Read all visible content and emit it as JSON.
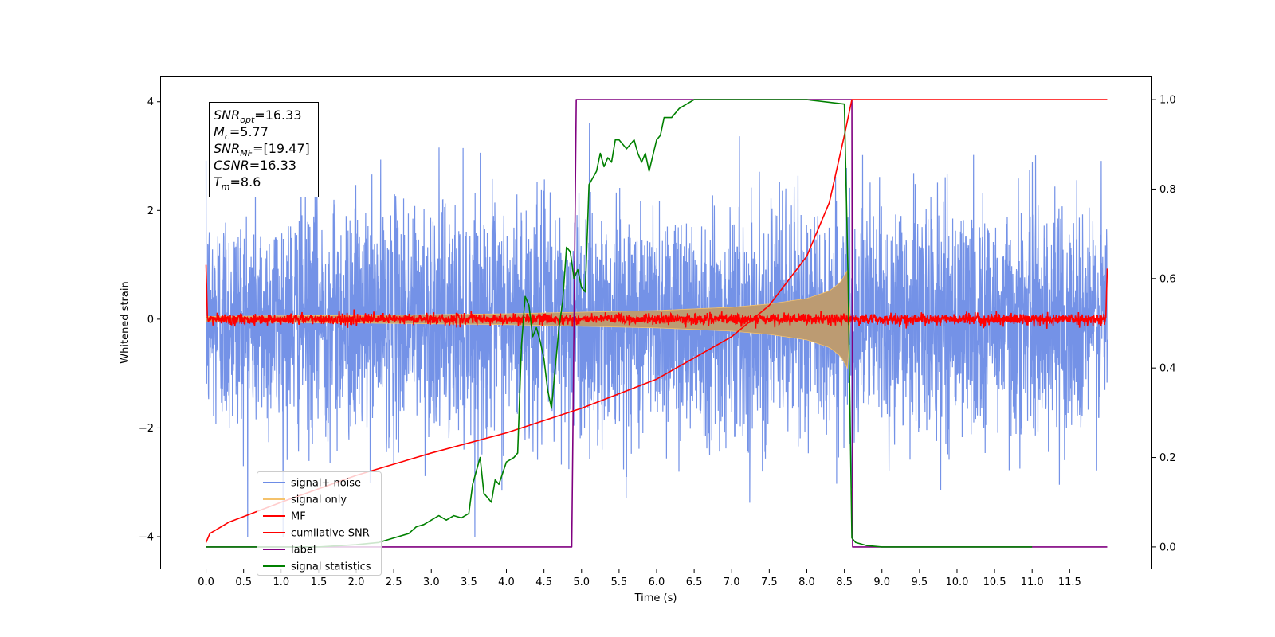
{
  "chart_data": {
    "type": "line",
    "title": "",
    "xlabel": "Time (s)",
    "ylabel": "Whitened strain",
    "xlim": [
      -0.6,
      12.6
    ],
    "ylim": [
      -4.6,
      4.45
    ],
    "ylim_right": [
      -0.05,
      1.05
    ],
    "x_ticks": [
      0.0,
      0.5,
      1.0,
      1.5,
      2.0,
      2.5,
      3.0,
      3.5,
      4.0,
      4.5,
      5.0,
      5.5,
      6.0,
      6.5,
      7.0,
      7.5,
      8.0,
      8.5,
      9.0,
      9.5,
      10.0,
      10.5,
      11.0,
      11.5
    ],
    "x_tick_labels": [
      "0.0",
      "0.5",
      "1.0",
      "1.5",
      "2.0",
      "2.5",
      "3.0",
      "3.5",
      "4.0",
      "4.5",
      "5.0",
      "5.5",
      "6.0",
      "6.5",
      "7.0",
      "7.5",
      "8.0",
      "8.5",
      "9.0",
      "9.5",
      "10.0",
      "10.5",
      "11.0",
      "11.5"
    ],
    "y_ticks": [
      -4,
      -2,
      0,
      2,
      4
    ],
    "y_tick_labels": [
      "−4",
      "−2",
      "0",
      "2",
      "4"
    ],
    "y_right_ticks": [
      0.0,
      0.2,
      0.4,
      0.6,
      0.8,
      1.0
    ],
    "y_right_tick_labels": [
      "0.0",
      "0.2",
      "0.4",
      "0.6",
      "0.8",
      "1.0"
    ],
    "grid": false,
    "legend_position": "lower-left",
    "annotation": [
      {
        "base": "SNR",
        "sub": "opt",
        "rest": "=16.33"
      },
      {
        "base": "M",
        "sub": "c",
        "rest": "=5.77"
      },
      {
        "base": "SNR",
        "sub": "MF",
        "rest": "=[19.47]"
      },
      {
        "base": "CSNR",
        "sub": "",
        "rest": "=16.33"
      },
      {
        "base": "T",
        "sub": "m",
        "rest": "=8.6"
      }
    ],
    "series": [
      {
        "name": "signal+ noise",
        "axis": "left",
        "color": "#6d8ce6",
        "x_range": [
          0.0,
          12.0
        ],
        "noise_std": 1.05,
        "peak_abs": 4.0
      },
      {
        "name": "signal only",
        "axis": "left",
        "color": "#f5c26b",
        "fill_color": "#bc9b72",
        "x_range": [
          0.0,
          8.58
        ],
        "envelope": {
          "x": [
            0.0,
            2.0,
            4.0,
            6.0,
            7.0,
            7.5,
            8.0,
            8.3,
            8.45,
            8.55,
            8.58
          ],
          "y": [
            0.05,
            0.07,
            0.1,
            0.16,
            0.22,
            0.28,
            0.38,
            0.52,
            0.68,
            0.92,
            0.0
          ]
        }
      },
      {
        "name": "MF",
        "axis": "left",
        "color": "#ff0000",
        "x_range": [
          0.0,
          12.0
        ],
        "level": 0.0,
        "noise_std": 0.05,
        "edge_values": [
          1.0,
          0.93
        ]
      },
      {
        "name": "cumilative SNR",
        "axis": "right",
        "color": "#ff0000",
        "x": [
          0.0,
          0.05,
          0.3,
          1.0,
          2.0,
          3.0,
          4.0,
          5.0,
          6.0,
          7.0,
          7.5,
          8.0,
          8.3,
          8.5,
          8.6,
          8.63,
          12.0
        ],
        "y": [
          0.01,
          0.03,
          0.055,
          0.1,
          0.16,
          0.21,
          0.255,
          0.31,
          0.375,
          0.47,
          0.54,
          0.65,
          0.77,
          0.92,
          1.0,
          1.0,
          1.0
        ]
      },
      {
        "name": "label",
        "axis": "right",
        "color": "#800080",
        "x": [
          0.0,
          4.87,
          4.93,
          8.53,
          8.6,
          8.61,
          12.0
        ],
        "y": [
          0.0,
          0.0,
          1.0,
          1.0,
          1.0,
          0.0,
          0.0
        ]
      },
      {
        "name": "signal statistics",
        "axis": "right",
        "color": "#008000",
        "x": [
          0.0,
          1.5,
          2.0,
          2.3,
          2.5,
          2.7,
          2.8,
          2.9,
          3.0,
          3.1,
          3.2,
          3.3,
          3.4,
          3.5,
          3.55,
          3.6,
          3.65,
          3.7,
          3.8,
          3.85,
          3.9,
          4.0,
          4.1,
          4.15,
          4.2,
          4.25,
          4.3,
          4.35,
          4.4,
          4.45,
          4.5,
          4.55,
          4.6,
          4.7,
          4.75,
          4.8,
          4.85,
          4.9,
          4.95,
          5.0,
          5.05,
          5.1,
          5.2,
          5.25,
          5.3,
          5.35,
          5.4,
          5.45,
          5.5,
          5.6,
          5.7,
          5.75,
          5.8,
          5.85,
          5.9,
          6.0,
          6.05,
          6.1,
          6.2,
          6.3,
          6.4,
          6.5,
          6.6,
          6.8,
          7.0,
          8.0,
          8.5,
          8.55,
          8.6,
          8.65,
          8.8,
          9.0,
          11.0
        ],
        "y": [
          0.0,
          0.0,
          0.005,
          0.01,
          0.02,
          0.03,
          0.045,
          0.05,
          0.06,
          0.07,
          0.06,
          0.07,
          0.065,
          0.075,
          0.14,
          0.17,
          0.2,
          0.12,
          0.1,
          0.15,
          0.14,
          0.19,
          0.2,
          0.21,
          0.45,
          0.56,
          0.54,
          0.47,
          0.49,
          0.46,
          0.42,
          0.35,
          0.31,
          0.49,
          0.55,
          0.67,
          0.66,
          0.6,
          0.62,
          0.58,
          0.57,
          0.81,
          0.84,
          0.88,
          0.85,
          0.87,
          0.86,
          0.91,
          0.91,
          0.89,
          0.91,
          0.88,
          0.86,
          0.88,
          0.84,
          0.91,
          0.92,
          0.96,
          0.96,
          0.98,
          0.99,
          1.0,
          1.0,
          1.0,
          1.0,
          1.0,
          0.99,
          0.6,
          0.02,
          0.01,
          0.003,
          0.0,
          0.0
        ]
      }
    ]
  }
}
